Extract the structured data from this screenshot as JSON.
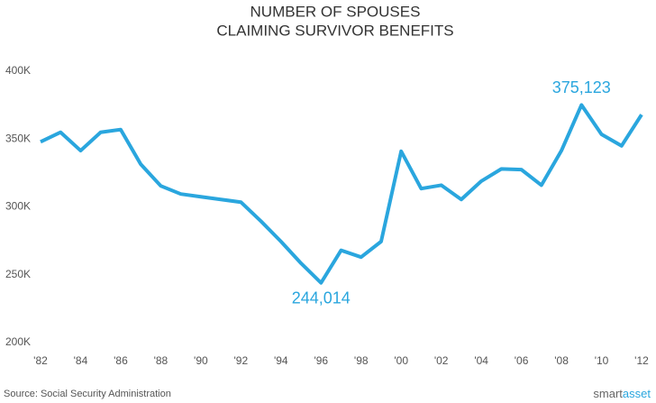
{
  "chart_data": {
    "type": "line",
    "title": [
      "NUMBER OF SPOUSES",
      "CLAIMING SURVIVOR BENEFITS"
    ],
    "x": [
      1982,
      1983,
      1984,
      1985,
      1986,
      1987,
      1988,
      1989,
      1990,
      1991,
      1992,
      1993,
      1994,
      1995,
      1996,
      1997,
      1998,
      1999,
      2000,
      2001,
      2002,
      2003,
      2004,
      2005,
      2006,
      2007,
      2008,
      2009,
      2010,
      2011,
      2012
    ],
    "series": [
      {
        "name": "Spouses claiming survivor benefits",
        "color": "#2aa6de",
        "values": [
          348000,
          355000,
          341500,
          355000,
          357000,
          331500,
          315500,
          309500,
          307500,
          305500,
          303500,
          289500,
          274500,
          258500,
          244014,
          268000,
          263000,
          274500,
          341000,
          313500,
          316000,
          305500,
          319000,
          328000,
          327500,
          316000,
          341500,
          375123,
          353500,
          345000,
          368000
        ],
        "value_labels": [
          null,
          null,
          null,
          null,
          null,
          null,
          null,
          null,
          null,
          null,
          null,
          null,
          null,
          null,
          "244,014",
          null,
          null,
          null,
          null,
          null,
          null,
          null,
          null,
          null,
          null,
          null,
          null,
          "375,123",
          null,
          null,
          null
        ]
      }
    ],
    "xlim": [
      1982,
      2012
    ],
    "xticks": [
      {
        "value": 1982,
        "label": "'82"
      },
      {
        "value": 1984,
        "label": "'84"
      },
      {
        "value": 1986,
        "label": "'86"
      },
      {
        "value": 1988,
        "label": "'88"
      },
      {
        "value": 1990,
        "label": "'90"
      },
      {
        "value": 1992,
        "label": "'92"
      },
      {
        "value": 1994,
        "label": "'94"
      },
      {
        "value": 1996,
        "label": "'96"
      },
      {
        "value": 1998,
        "label": "'98"
      },
      {
        "value": 2000,
        "label": "'00"
      },
      {
        "value": 2002,
        "label": "'02"
      },
      {
        "value": 2004,
        "label": "'04"
      },
      {
        "value": 2006,
        "label": "'06"
      },
      {
        "value": 2008,
        "label": "'08"
      },
      {
        "value": 2010,
        "label": "'10"
      },
      {
        "value": 2012,
        "label": "'12"
      }
    ],
    "ylim": [
      200000,
      400000
    ],
    "yticks": [
      {
        "value": 200000,
        "label": "200K"
      },
      {
        "value": 250000,
        "label": "250K"
      },
      {
        "value": 300000,
        "label": "300K"
      },
      {
        "value": 350000,
        "label": "350K"
      },
      {
        "value": 400000,
        "label": "400K"
      }
    ],
    "source": "Source: Social Security Administration",
    "logo": [
      "smart",
      "asset"
    ]
  }
}
